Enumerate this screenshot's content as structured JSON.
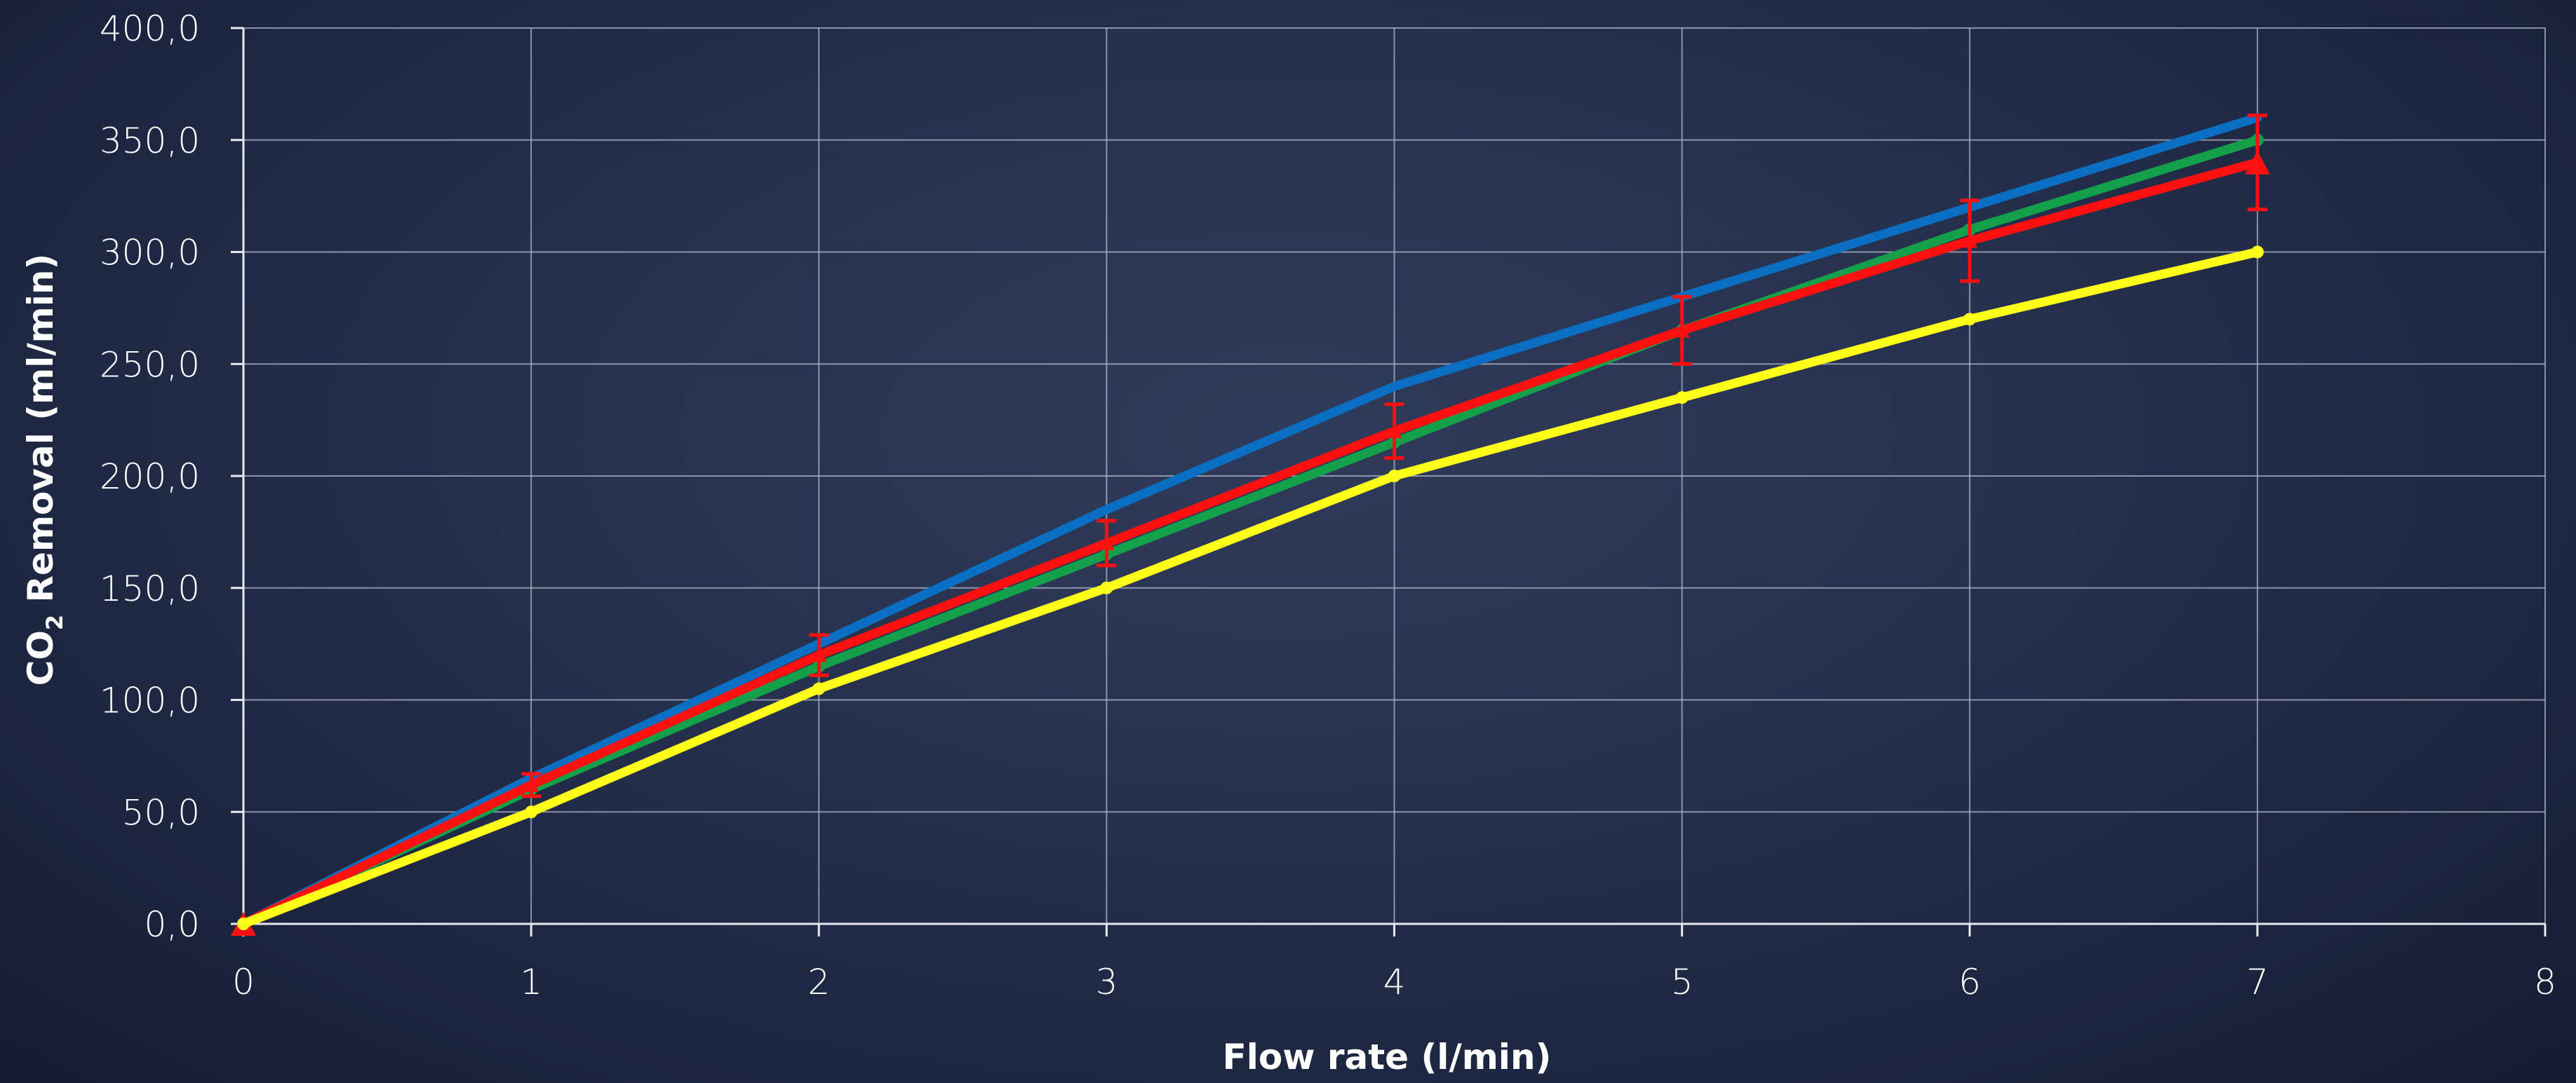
{
  "chart_data": {
    "type": "line",
    "xlabel": "Flow rate (l/min)",
    "ylabel": {
      "prefix": "CO",
      "subscript": "2",
      "suffix": " Removal (ml/min)"
    },
    "xlim": [
      0,
      8
    ],
    "ylim": [
      0,
      400
    ],
    "x_ticks": [
      "0",
      "1",
      "2",
      "3",
      "4",
      "5",
      "6",
      "7",
      "8"
    ],
    "y_ticks": [
      "0,0",
      "50,0",
      "100,0",
      "150,0",
      "200,0",
      "250,0",
      "300,0",
      "350,0",
      "400,0"
    ],
    "grid": true,
    "legend": "none",
    "series": [
      {
        "color": "#0a6fc2",
        "marker": "none",
        "x": [
          0,
          1,
          2,
          3,
          4,
          5,
          6,
          7
        ],
        "y": [
          0,
          65,
          125,
          185,
          240,
          280,
          320,
          360
        ]
      },
      {
        "color": "#14a04a",
        "marker": "circle",
        "x": [
          0,
          1,
          2,
          3,
          4,
          5,
          6,
          7
        ],
        "y": [
          0,
          60,
          115,
          165,
          215,
          265,
          310,
          350
        ]
      },
      {
        "color": "#ff0f0f",
        "marker": "triangle",
        "x": [
          0,
          1,
          2,
          3,
          4,
          5,
          6,
          7
        ],
        "y": [
          0,
          62,
          120,
          170,
          220,
          265,
          305,
          340
        ],
        "err": [
          0,
          5,
          9,
          10,
          12,
          15,
          18,
          21
        ]
      },
      {
        "color": "#ffff1a",
        "marker": "circle",
        "x": [
          0,
          1,
          2,
          3,
          4,
          5,
          6,
          7
        ],
        "y": [
          0,
          50,
          105,
          150,
          200,
          235,
          270,
          300
        ]
      }
    ]
  }
}
